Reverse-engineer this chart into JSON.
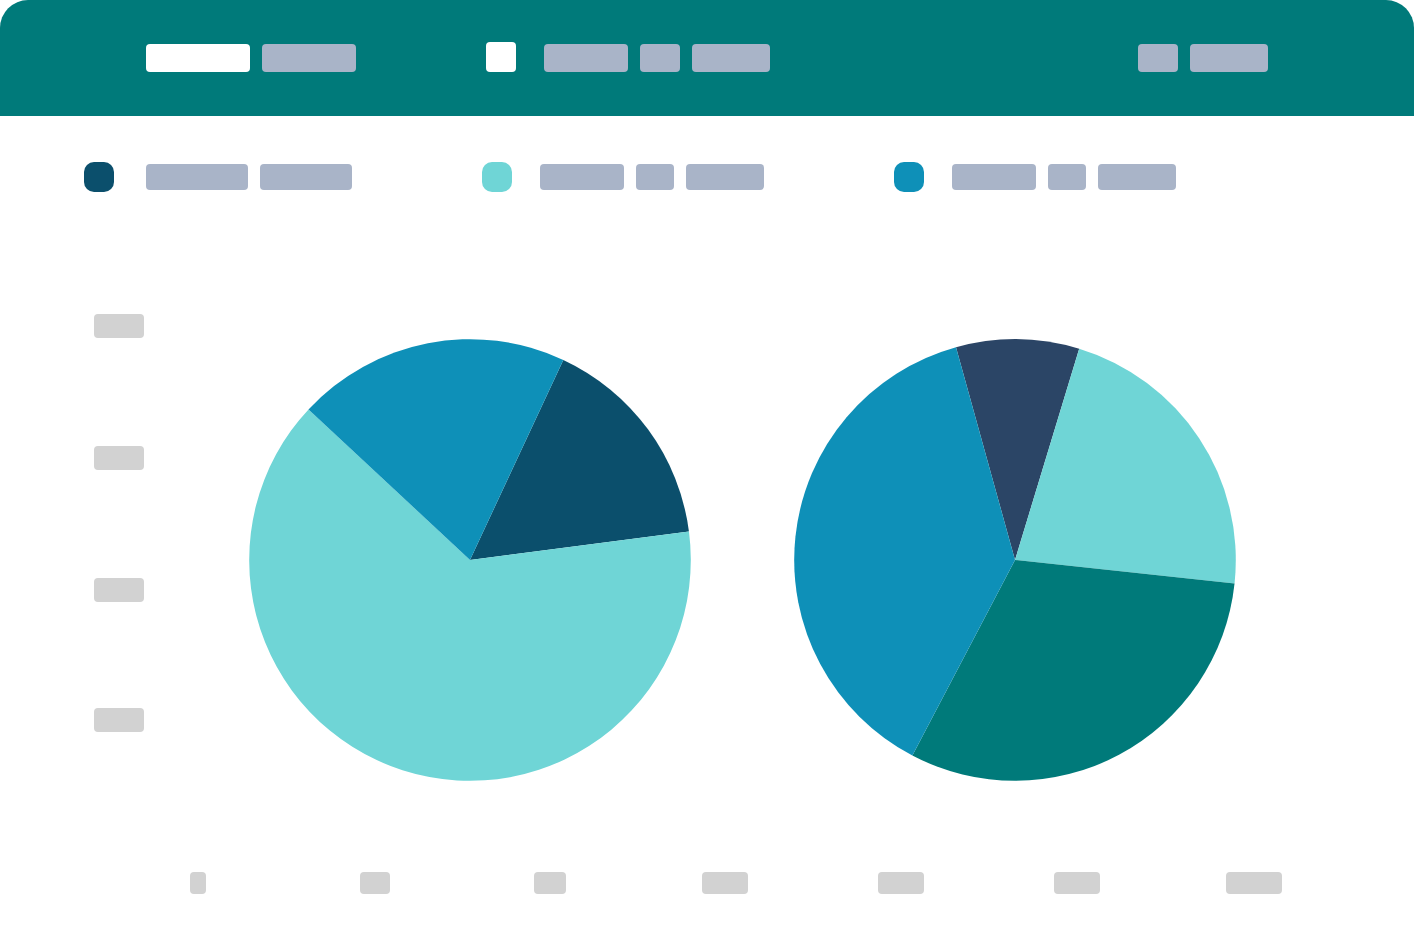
{
  "chart_data": [
    {
      "type": "pie",
      "categories": [
        null,
        null,
        null
      ],
      "values": [
        16,
        64,
        20
      ],
      "colors": [
        "#0b4f6c",
        "#6fd5d6",
        "#0e90b8"
      ]
    },
    {
      "type": "pie",
      "categories": [
        null,
        null,
        null,
        null
      ],
      "values": [
        9,
        22,
        31,
        38
      ],
      "colors": [
        "#2b4566",
        "#6fd5d6",
        "#007a7a",
        "#0e90b8"
      ]
    }
  ]
}
